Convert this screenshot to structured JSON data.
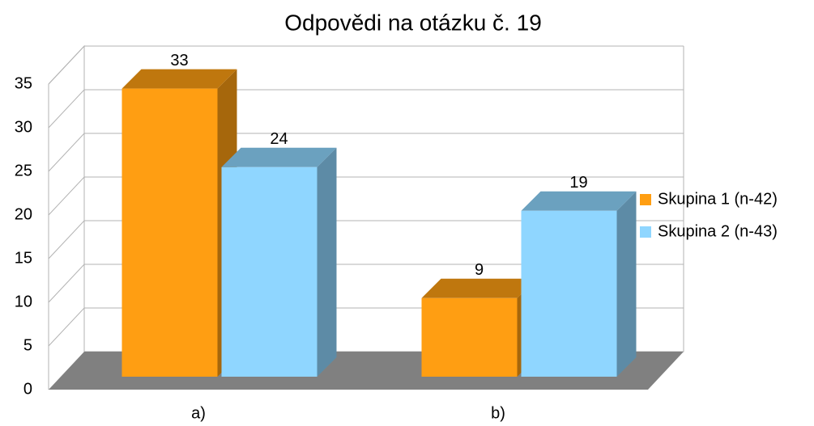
{
  "chart_data": {
    "type": "bar3d",
    "title": "Odpovědi na otázku č. 19",
    "categories": [
      "a)",
      "b)"
    ],
    "series": [
      {
        "name": "Skupina 1 (n-42)",
        "color": "#ff9e12",
        "values": [
          33,
          9
        ],
        "value_labels": [
          "33",
          "9"
        ]
      },
      {
        "name": "Skupina 2 (n-43)",
        "color": "#8fd6ff",
        "values": [
          24,
          19
        ],
        "value_labels": [
          "24",
          "19"
        ]
      }
    ],
    "ylim": [
      0,
      35
    ],
    "yticks": [
      0,
      5,
      10,
      15,
      20,
      25,
      30,
      35
    ],
    "grid": true,
    "legend": "right"
  }
}
